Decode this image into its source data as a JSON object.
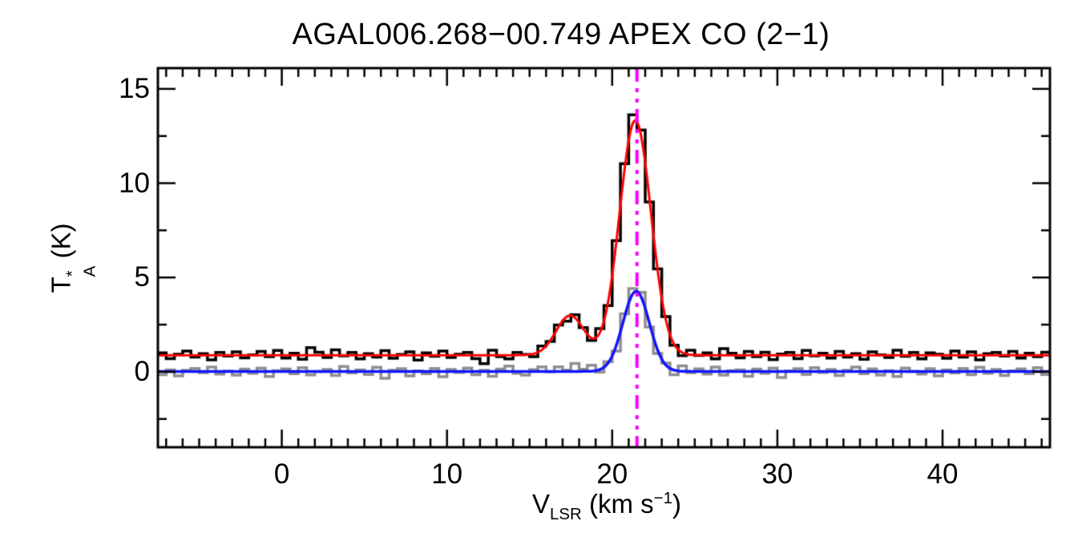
{
  "title": "AGAL006.268−00.749  APEX CO (2−1)",
  "y_label": {
    "base": "T",
    "sup": "*",
    "sub": "A",
    "unit": " (K)"
  },
  "x_label": {
    "base": "V",
    "sub": "LSR",
    "unit_prefix": " (km s",
    "exp": "−1",
    "unit_suffix": ")"
  },
  "chart_data": {
    "type": "line",
    "subtype": "spectral-line-histogram-with-gaussian-fits",
    "title": "AGAL006.268−00.749  APEX CO (2−1)",
    "xlabel": "V_LSR (km s^-1)",
    "ylabel": "T_A^* (K)",
    "x_range": [
      -7.5,
      46.5
    ],
    "y_range": [
      -4,
      16.1
    ],
    "x_ticks": {
      "major": [
        0,
        10,
        20,
        30,
        40
      ],
      "labels": [
        "0",
        "10",
        "20",
        "30",
        "40"
      ],
      "minor_step": 1
    },
    "y_ticks": {
      "major": [
        0,
        5,
        10,
        15
      ],
      "labels": [
        "0",
        "5",
        "10",
        "15"
      ],
      "minor_step": 2.5
    },
    "grid": false,
    "legend": "none",
    "v_start": -7.5,
    "dv": 0.5,
    "n_channels": 108,
    "marker_line": {
      "x_value": 21.5,
      "color": "#ff00ff",
      "style": "dash-dot",
      "width": 4
    },
    "series": [
      {
        "name": "observed-spectrum",
        "role": "histogram",
        "color": "#000000",
        "line_width": 3.5,
        "baseline": 0.88,
        "gaussians": [
          {
            "amp": 12.45,
            "center": 21.4,
            "sigma": 0.95
          },
          {
            "amp": 2.1,
            "center": 17.45,
            "sigma": 0.85
          }
        ],
        "noise": [
          0.12,
          -0.18,
          0.05,
          0.22,
          -0.1,
          0.08,
          -0.25,
          0.15,
          -0.05,
          0.18,
          -0.14,
          0.02,
          0.2,
          -0.08,
          0.25,
          -0.15,
          0.1,
          -0.22,
          0.4,
          0.16,
          -0.12,
          0.28,
          -0.04,
          0.14,
          -0.2,
          0.08,
          -0.1,
          0.24,
          -0.16,
          0.04,
          0.18,
          -0.26,
          0.12,
          -0.06,
          0.22,
          -0.12,
          0.05,
          0.15,
          -0.18,
          -0.45,
          0.26,
          -0.08,
          -0.2,
          0.14,
          0.02,
          -0.15,
          0.2,
          -0.05,
          0.1,
          -0.24,
          0.16,
          0.06,
          -0.12,
          0.22,
          -0.18,
          0.08,
          0.3,
          0.45,
          0.3,
          -0.22,
          0.04,
          0.18,
          -0.06,
          -0.16,
          0.24,
          -0.02,
          0.12,
          -0.2,
          0.35,
          0.1,
          -0.14,
          0.2,
          -0.08,
          0.16,
          -0.24,
          0.06,
          0.14,
          -0.18,
          0.25,
          -0.04,
          0.1,
          -0.15,
          0.2,
          -0.1,
          0.08,
          -0.22,
          0.18,
          0.02,
          -0.12,
          0.26,
          -0.06,
          0.15,
          -0.2,
          0.12,
          0.05,
          -0.16,
          0.22,
          -0.1,
          0.18,
          -0.25,
          0.08,
          0.14,
          -0.05,
          0.2,
          -0.15,
          0.1,
          -0.08,
          0.16
        ]
      },
      {
        "name": "smoothed-offset-spectrum",
        "role": "histogram",
        "color": "#8f8f8f",
        "line_width": 3.5,
        "baseline": 0.0,
        "gaussians": [
          {
            "amp": 4.25,
            "center": 21.45,
            "sigma": 0.8
          },
          {
            "amp": 0.3,
            "center": 17.45,
            "sigma": 0.85
          }
        ],
        "noise": [
          -0.15,
          0.1,
          -0.22,
          0.08,
          0.18,
          -0.05,
          0.25,
          -0.12,
          0.04,
          -0.18,
          0.14,
          -0.08,
          0.2,
          -0.25,
          0.06,
          0.15,
          -0.1,
          0.22,
          -0.16,
          0.02,
          0.12,
          -0.2,
          0.28,
          -0.06,
          0.1,
          -0.14,
          0.24,
          -0.35,
          0.08,
          0.16,
          -0.22,
          0.05,
          -0.1,
          0.18,
          -0.26,
          0.12,
          -0.04,
          0.2,
          -0.15,
          0.08,
          -0.24,
          0.14,
          0.3,
          -0.08,
          -0.18,
          0.1,
          0.22,
          -0.12,
          0.05,
          -0.2,
          0.16,
          -0.06,
          0.24,
          -0.14,
          0.08,
          -0.28,
          0.18,
          0.3,
          0.25,
          -0.2,
          -0.16,
          0.12,
          -0.22,
          0.3,
          -0.05,
          0.15,
          -0.12,
          0.25,
          -0.18,
          0.06,
          0.1,
          -0.24,
          0.14,
          -0.08,
          0.2,
          -0.3,
          0.05,
          0.16,
          -0.14,
          0.22,
          -0.04,
          0.12,
          -0.2,
          0.08,
          0.25,
          -0.1,
          0.15,
          -0.18,
          0.06,
          -0.25,
          0.2,
          0.02,
          -0.12,
          0.16,
          -0.22,
          0.1,
          -0.06,
          0.18,
          -0.15,
          0.24,
          -0.08,
          0.12,
          -0.2,
          0.05,
          0.15,
          -0.1,
          0.22,
          -0.14
        ]
      },
      {
        "name": "gaussian-fit-observed",
        "role": "fit",
        "color": "#ff0000",
        "line_width": 3,
        "baseline": 0.88,
        "gaussians": [
          {
            "amp": 12.45,
            "center": 21.4,
            "sigma": 0.95
          },
          {
            "amp": 2.1,
            "center": 17.45,
            "sigma": 0.85
          }
        ]
      },
      {
        "name": "gaussian-fit-offset",
        "role": "fit",
        "color": "#1414ff",
        "line_width": 3.5,
        "baseline": 0.02,
        "gaussians": [
          {
            "amp": 4.25,
            "center": 21.45,
            "sigma": 0.8
          }
        ]
      }
    ]
  }
}
